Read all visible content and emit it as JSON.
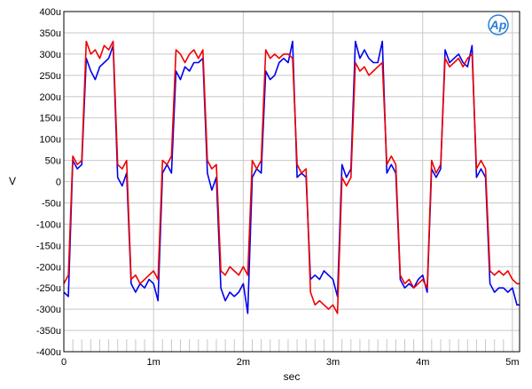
{
  "chart_data": {
    "type": "line",
    "title": "",
    "xlabel": "sec",
    "ylabel": "V",
    "xlim": [
      0,
      0.00508
    ],
    "ylim": [
      -0.0004,
      0.0004
    ],
    "grid": true,
    "legend": "none",
    "logo_text": "Ap",
    "x_ticks": [
      {
        "value": 0,
        "label": "0"
      },
      {
        "value": 0.001,
        "label": "1m"
      },
      {
        "value": 0.002,
        "label": "2m"
      },
      {
        "value": 0.003,
        "label": "3m"
      },
      {
        "value": 0.004,
        "label": "4m"
      },
      {
        "value": 0.005,
        "label": "5m"
      }
    ],
    "y_ticks": [
      {
        "value": 0.0004,
        "label": "400u"
      },
      {
        "value": 0.00035,
        "label": "350u"
      },
      {
        "value": 0.0003,
        "label": "300u"
      },
      {
        "value": 0.00025,
        "label": "250u"
      },
      {
        "value": 0.0002,
        "label": "200u"
      },
      {
        "value": 0.00015,
        "label": "150u"
      },
      {
        "value": 0.0001,
        "label": "100u"
      },
      {
        "value": 5e-05,
        "label": "50u"
      },
      {
        "value": 0,
        "label": "0"
      },
      {
        "value": -5e-05,
        "label": "-50u"
      },
      {
        "value": -0.0001,
        "label": "-100u"
      },
      {
        "value": -0.00015,
        "label": "-150u"
      },
      {
        "value": -0.0002,
        "label": "-200u"
      },
      {
        "value": -0.00025,
        "label": "-250u"
      },
      {
        "value": -0.0003,
        "label": "-300u"
      },
      {
        "value": -0.00035,
        "label": "-350u"
      },
      {
        "value": -0.0004,
        "label": "-400u"
      }
    ],
    "series": [
      {
        "color": "#0000ee",
        "x": [
          0,
          5e-05,
          0.0001,
          0.00015,
          0.0002,
          0.00025,
          0.0003,
          0.00035,
          0.0004,
          0.00045,
          0.0005,
          0.00055,
          0.0006,
          0.00065,
          0.0007,
          0.00075,
          0.0008,
          0.00085,
          0.0009,
          0.00095,
          0.001,
          0.00105,
          0.0011,
          0.00115,
          0.0012,
          0.00125,
          0.0013,
          0.00135,
          0.0014,
          0.00145,
          0.0015,
          0.00155,
          0.0016,
          0.00165,
          0.0017,
          0.00175,
          0.0018,
          0.00185,
          0.0019,
          0.00195,
          0.002,
          0.00205,
          0.0021,
          0.00215,
          0.0022,
          0.00225,
          0.0023,
          0.00235,
          0.0024,
          0.00245,
          0.0025,
          0.00255,
          0.0026,
          0.00265,
          0.0027,
          0.00275,
          0.0028,
          0.00285,
          0.0029,
          0.00295,
          0.003,
          0.00305,
          0.0031,
          0.00315,
          0.0032,
          0.00325,
          0.0033,
          0.00335,
          0.0034,
          0.00345,
          0.0035,
          0.00355,
          0.0036,
          0.00365,
          0.0037,
          0.00375,
          0.0038,
          0.00385,
          0.0039,
          0.00395,
          0.004,
          0.00405,
          0.0041,
          0.00415,
          0.0042,
          0.00425,
          0.0043,
          0.00435,
          0.0044,
          0.00445,
          0.0045,
          0.00455,
          0.0046,
          0.00465,
          0.0047,
          0.00475,
          0.0048,
          0.00485,
          0.0049,
          0.00495,
          0.005,
          0.00505,
          0.00508
        ],
        "y": [
          -0.00026,
          -0.00027,
          5e-05,
          3e-05,
          4e-05,
          0.00029,
          0.00026,
          0.00024,
          0.00027,
          0.00028,
          0.00029,
          0.00032,
          1e-05,
          -1e-05,
          2e-05,
          -0.00024,
          -0.00026,
          -0.00024,
          -0.00025,
          -0.00023,
          -0.00024,
          -0.00028,
          2e-05,
          4e-05,
          2e-05,
          0.00026,
          0.00024,
          0.00027,
          0.00026,
          0.00028,
          0.00028,
          0.00029,
          2e-05,
          -2e-05,
          1e-05,
          -0.00025,
          -0.00028,
          -0.00026,
          -0.00027,
          -0.00026,
          -0.00024,
          -0.00031,
          1e-05,
          3e-05,
          2e-05,
          0.00026,
          0.00024,
          0.00025,
          0.00028,
          0.00029,
          0.00028,
          0.00033,
          1e-05,
          2e-05,
          1e-05,
          -0.00023,
          -0.00022,
          -0.00023,
          -0.00021,
          -0.00022,
          -0.00023,
          -0.00027,
          4e-05,
          1e-05,
          3e-05,
          0.00033,
          0.00029,
          0.00031,
          0.00029,
          0.00028,
          0.00028,
          0.00033,
          2e-05,
          4e-05,
          2e-05,
          -0.00023,
          -0.00025,
          -0.00024,
          -0.00025,
          -0.00023,
          -0.00022,
          -0.00026,
          3e-05,
          1e-05,
          3e-05,
          0.00031,
          0.00028,
          0.00029,
          0.0003,
          0.00028,
          0.00027,
          0.00032,
          1e-05,
          3e-05,
          1e-05,
          -0.00024,
          -0.00026,
          -0.00025,
          -0.00025,
          -0.00026,
          -0.00025,
          -0.00029,
          -0.00029
        ]
      },
      {
        "color": "#ee0000",
        "x": [
          0,
          5e-05,
          0.0001,
          0.00015,
          0.0002,
          0.00025,
          0.0003,
          0.00035,
          0.0004,
          0.00045,
          0.0005,
          0.00055,
          0.0006,
          0.00065,
          0.0007,
          0.00075,
          0.0008,
          0.00085,
          0.0009,
          0.00095,
          0.001,
          0.00105,
          0.0011,
          0.00115,
          0.0012,
          0.00125,
          0.0013,
          0.00135,
          0.0014,
          0.00145,
          0.0015,
          0.00155,
          0.0016,
          0.00165,
          0.0017,
          0.00175,
          0.0018,
          0.00185,
          0.0019,
          0.00195,
          0.002,
          0.00205,
          0.0021,
          0.00215,
          0.0022,
          0.00225,
          0.0023,
          0.00235,
          0.0024,
          0.00245,
          0.0025,
          0.00255,
          0.0026,
          0.00265,
          0.0027,
          0.00275,
          0.0028,
          0.00285,
          0.0029,
          0.00295,
          0.003,
          0.00305,
          0.0031,
          0.00315,
          0.0032,
          0.00325,
          0.0033,
          0.00335,
          0.0034,
          0.00345,
          0.0035,
          0.00355,
          0.0036,
          0.00365,
          0.0037,
          0.00375,
          0.0038,
          0.00385,
          0.0039,
          0.00395,
          0.004,
          0.00405,
          0.0041,
          0.00415,
          0.0042,
          0.00425,
          0.0043,
          0.00435,
          0.0044,
          0.00445,
          0.0045,
          0.00455,
          0.0046,
          0.00465,
          0.0047,
          0.00475,
          0.0048,
          0.00485,
          0.0049,
          0.00495,
          0.005,
          0.00505,
          0.00508
        ],
        "y": [
          -0.00024,
          -0.00022,
          6e-05,
          4e-05,
          5e-05,
          0.00033,
          0.0003,
          0.00031,
          0.00029,
          0.00032,
          0.00031,
          0.00033,
          4e-05,
          3e-05,
          5e-05,
          -0.00023,
          -0.00022,
          -0.00024,
          -0.00023,
          -0.00022,
          -0.00021,
          -0.00023,
          5e-05,
          4e-05,
          6e-05,
          0.00031,
          0.0003,
          0.00028,
          0.0003,
          0.00031,
          0.00029,
          0.00031,
          5e-05,
          3e-05,
          4e-05,
          -0.00021,
          -0.00022,
          -0.0002,
          -0.00021,
          -0.00022,
          -0.0002,
          -0.00022,
          5e-05,
          3e-05,
          5e-05,
          0.00031,
          0.00029,
          0.0003,
          0.00029,
          0.0003,
          0.0003,
          0.00029,
          4e-05,
          2e-05,
          3e-05,
          -0.00026,
          -0.00029,
          -0.00028,
          -0.00029,
          -0.0003,
          -0.00029,
          -0.00031,
          1e-05,
          -1e-05,
          1e-05,
          0.00028,
          0.00026,
          0.00027,
          0.00025,
          0.00026,
          0.00027,
          0.00028,
          4e-05,
          6e-05,
          4e-05,
          -0.00022,
          -0.00024,
          -0.00023,
          -0.00025,
          -0.00024,
          -0.00023,
          -0.00025,
          5e-05,
          2e-05,
          4e-05,
          0.00029,
          0.00027,
          0.00028,
          0.00029,
          0.00027,
          0.00029,
          0.0003,
          3e-05,
          5e-05,
          3e-05,
          -0.00021,
          -0.00022,
          -0.00021,
          -0.00022,
          -0.00021,
          -0.00023,
          -0.00024,
          -0.00024
        ]
      }
    ],
    "colors": {
      "grid": "#c8c8c8",
      "frame": "#000000",
      "logo": "#2a7fd4"
    }
  }
}
